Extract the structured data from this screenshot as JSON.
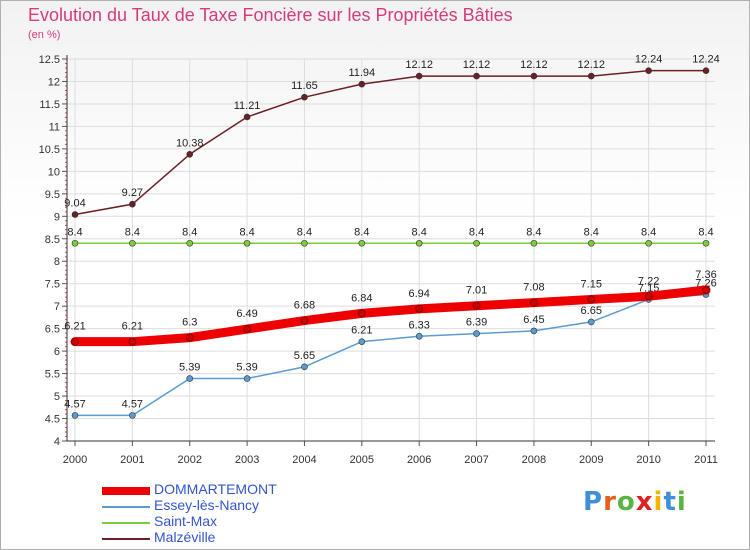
{
  "title": "Evolution du Taux de Taxe Foncière sur les Propriétés Bâties",
  "unit_label": "(en %)",
  "logo": {
    "text": "Proxiti",
    "letters": [
      "P",
      "r",
      "o",
      "x",
      "i",
      "t",
      "i"
    ],
    "colors": [
      "#3f8fd6",
      "#e55d1f",
      "#5ab443",
      "#e02020",
      "#f2b600",
      "#3f8fd6",
      "#5ab443"
    ]
  },
  "chart_data": {
    "type": "line",
    "title": "Evolution du Taux de Taxe Foncière sur les Propriétés Bâties",
    "ylabel": "(en %)",
    "xlabel": "",
    "categories": [
      "2000",
      "2001",
      "2002",
      "2003",
      "2004",
      "2005",
      "2006",
      "2007",
      "2008",
      "2009",
      "2010",
      "2011"
    ],
    "ylim": [
      4,
      12.5
    ],
    "yticks": [
      "4",
      "4.5",
      "5",
      "5.5",
      "6",
      "6.5",
      "7",
      "7.5",
      "8",
      "8.5",
      "9",
      "9.5",
      "10",
      "10.5",
      "11",
      "11.5",
      "12",
      "12.5"
    ],
    "grid": true,
    "legend_position": "bottom-left",
    "series": [
      {
        "name": "Malzéville",
        "color": "#6b1f26",
        "values": [
          9.04,
          9.27,
          10.38,
          11.21,
          11.65,
          11.94,
          12.12,
          12.12,
          12.12,
          12.12,
          12.24,
          12.24
        ],
        "labels": [
          "9.04",
          "9.27",
          "10.38",
          "11.21",
          "11.65",
          "11.94",
          "12.12",
          "12.12",
          "12.12",
          "12.12",
          "12.24",
          "12.24"
        ]
      },
      {
        "name": "Saint-Max",
        "color": "#7ccd3c",
        "values": [
          8.4,
          8.4,
          8.4,
          8.4,
          8.4,
          8.4,
          8.4,
          8.4,
          8.4,
          8.4,
          8.4,
          8.4
        ],
        "labels": [
          "8.4",
          "8.4",
          "8.4",
          "8.4",
          "8.4",
          "8.4",
          "8.4",
          "8.4",
          "8.4",
          "8.4",
          "8.4",
          "8.4"
        ]
      },
      {
        "name": "Essey-lès-Nancy",
        "color": "#5a9cd0",
        "values": [
          4.57,
          4.57,
          5.39,
          5.39,
          5.65,
          6.21,
          6.33,
          6.39,
          6.45,
          6.65,
          7.15,
          7.26
        ],
        "labels": [
          "4.57",
          "4.57",
          "5.39",
          "5.39",
          "5.65",
          "6.21",
          "6.33",
          "6.39",
          "6.45",
          "6.65",
          "7.15",
          "7.26"
        ]
      },
      {
        "name": "DOMMARTEMONT",
        "color": "#ee0000",
        "values": [
          6.21,
          6.21,
          6.3,
          6.49,
          6.68,
          6.84,
          6.94,
          7.01,
          7.08,
          7.15,
          7.22,
          7.36
        ],
        "labels": [
          "6.21",
          "6.21",
          "6.3",
          "6.49",
          "6.68",
          "6.84",
          "6.94",
          "7.01",
          "7.08",
          "7.15",
          "7.22",
          "7.36"
        ]
      }
    ],
    "legend": [
      "DOMMARTEMONT",
      "Essey-lès-Nancy",
      "Saint-Max",
      "Malzéville"
    ]
  }
}
